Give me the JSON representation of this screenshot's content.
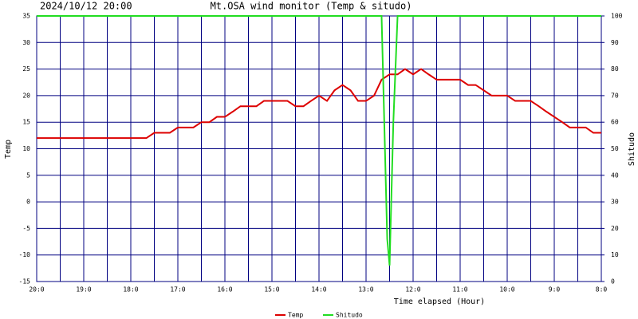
{
  "chart_data": {
    "type": "line",
    "date_label": "2024/10/12 20:00",
    "title": "Mt.OSA wind monitor (Temp & situdo)",
    "xlabel": "Time elapsed (Hour)",
    "ylabel": "Temp",
    "y2label": "Shitudo",
    "xlim": [
      0,
      12
    ],
    "xticks": [
      {
        "value": 0,
        "label": "20:0"
      },
      {
        "value": 1,
        "label": "19:0"
      },
      {
        "value": 2,
        "label": "18:0"
      },
      {
        "value": 3,
        "label": "17:0"
      },
      {
        "value": 4,
        "label": "16:0"
      },
      {
        "value": 5,
        "label": "15:0"
      },
      {
        "value": 6,
        "label": "14:0"
      },
      {
        "value": 7,
        "label": "13:0"
      },
      {
        "value": 8,
        "label": "12:0"
      },
      {
        "value": 9,
        "label": "11:0"
      },
      {
        "value": 10,
        "label": "10:0"
      },
      {
        "value": 11,
        "label": "9:0"
      },
      {
        "value": 12,
        "label": "8:0"
      }
    ],
    "xgrid_minor": [
      0.5,
      1.5,
      2.5,
      3.5,
      4.5,
      5.5,
      6.5,
      7.5,
      8.5,
      9.5,
      10.5,
      11.5
    ],
    "ylim": [
      -15,
      35
    ],
    "yticks": [
      -15,
      -10,
      -5,
      0,
      5,
      10,
      15,
      20,
      25,
      30,
      35
    ],
    "y2lim": [
      0,
      100
    ],
    "y2ticks": [
      0,
      10,
      20,
      30,
      40,
      50,
      60,
      70,
      80,
      90,
      100
    ],
    "grid": true,
    "grid_color": "#000080",
    "series": [
      {
        "name": "Temp",
        "color": "#dd0000",
        "x": [
          0,
          2.33,
          2.5,
          2.83,
          3.0,
          3.33,
          3.5,
          3.67,
          3.83,
          4.0,
          4.17,
          4.33,
          4.67,
          4.83,
          5.33,
          5.5,
          5.67,
          5.83,
          6.0,
          6.17,
          6.33,
          6.5,
          6.67,
          6.83,
          7.0,
          7.17,
          7.33,
          7.5,
          7.67,
          7.83,
          8.0,
          8.17,
          8.33,
          8.5,
          9.0,
          9.17,
          9.33,
          9.5,
          9.67,
          10.0,
          10.17,
          10.5,
          10.67,
          10.83,
          11.0,
          11.17,
          11.33,
          11.67,
          11.83,
          12.0
        ],
        "values": [
          12,
          12,
          13,
          13,
          14,
          14,
          15,
          15,
          16,
          16,
          17,
          18,
          18,
          19,
          19,
          18,
          18,
          19,
          20,
          19,
          21,
          22,
          21,
          19,
          19,
          20,
          23,
          24,
          24,
          25,
          24,
          25,
          24,
          23,
          23,
          22,
          22,
          21,
          20,
          20,
          19,
          19,
          18,
          17,
          16,
          15,
          14,
          14,
          13,
          13
        ]
      },
      {
        "name": "Shitudo",
        "color": "#22dd22",
        "axis": "y2",
        "x": [
          0,
          7.33,
          7.45,
          7.5,
          7.58,
          7.67,
          12.0
        ],
        "values": [
          100,
          100,
          16,
          6,
          60,
          100,
          100
        ]
      }
    ]
  }
}
